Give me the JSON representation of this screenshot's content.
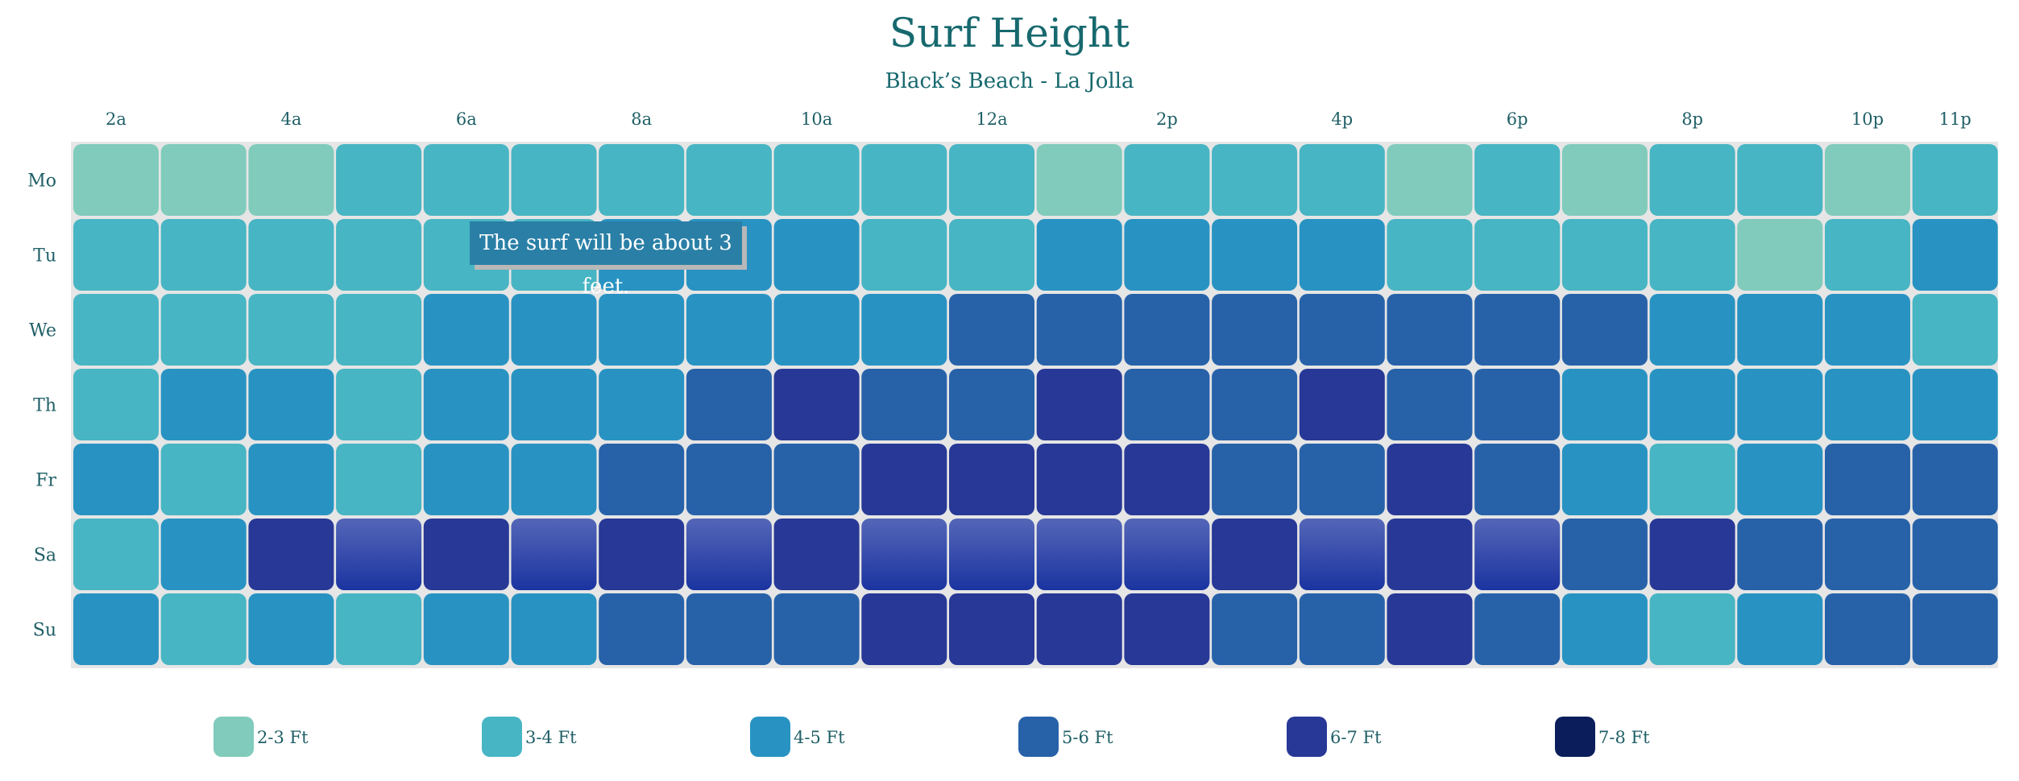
{
  "title": "Surf Height",
  "subtitle": "Black’s Beach - La Jolla",
  "tooltip": "The surf will be about 3 feet.",
  "chart_data": {
    "type": "heatmap",
    "title": "Surf Height",
    "subtitle": "Black’s Beach - La Jolla",
    "rows": [
      "Mo",
      "Tu",
      "We",
      "Th",
      "Fr",
      "Sa",
      "Su"
    ],
    "column_count": 22,
    "column_tick_labels": [
      {
        "col": 0,
        "label": "2a"
      },
      {
        "col": 2,
        "label": "4a"
      },
      {
        "col": 4,
        "label": "6a"
      },
      {
        "col": 6,
        "label": "8a"
      },
      {
        "col": 8,
        "label": "10a"
      },
      {
        "col": 10,
        "label": "12a"
      },
      {
        "col": 12,
        "label": "2p"
      },
      {
        "col": 14,
        "label": "4p"
      },
      {
        "col": 16,
        "label": "6p"
      },
      {
        "col": 18,
        "label": "8p"
      },
      {
        "col": 20,
        "label": "10p"
      },
      {
        "col": 21,
        "label": "11p"
      }
    ],
    "legend": [
      "2-3 Ft",
      "3-4 Ft",
      "4-5 Ft",
      "5-6 Ft",
      "6-7 Ft",
      "7-8 Ft"
    ],
    "colors": [
      "#80cbbc",
      "#47b5c3",
      "#2893c2",
      "#2762a9",
      "#283896",
      "#0b1e5b"
    ],
    "highlight_gradient": [
      "#5566b8",
      "#1a34a0"
    ],
    "values": [
      [
        0,
        0,
        0,
        1,
        1,
        1,
        1,
        1,
        1,
        1,
        1,
        0,
        1,
        1,
        1,
        0,
        1,
        0,
        1,
        1,
        0,
        1
      ],
      [
        1,
        1,
        1,
        1,
        1,
        1,
        2,
        2,
        2,
        1,
        1,
        2,
        2,
        2,
        2,
        1,
        1,
        1,
        1,
        0,
        1,
        2
      ],
      [
        1,
        1,
        1,
        1,
        2,
        2,
        2,
        2,
        2,
        2,
        3,
        3,
        3,
        3,
        3,
        3,
        3,
        3,
        2,
        2,
        2,
        1
      ],
      [
        1,
        2,
        2,
        1,
        2,
        2,
        2,
        3,
        4,
        3,
        3,
        4,
        3,
        3,
        4,
        3,
        3,
        2,
        2,
        2,
        2,
        2
      ],
      [
        2,
        1,
        2,
        1,
        2,
        2,
        3,
        3,
        3,
        4,
        4,
        4,
        4,
        3,
        3,
        4,
        3,
        2,
        1,
        2,
        3,
        3
      ],
      [
        1,
        2,
        4,
        4,
        4,
        4,
        4,
        4,
        4,
        4,
        4,
        4,
        4,
        4,
        4,
        4,
        4,
        3,
        4,
        3,
        3,
        3
      ],
      [
        2,
        1,
        2,
        1,
        2,
        2,
        3,
        3,
        3,
        4,
        4,
        4,
        4,
        3,
        3,
        4,
        3,
        2,
        1,
        2,
        3,
        3
      ]
    ],
    "highlighted_cells": [
      [
        5,
        3
      ],
      [
        5,
        5
      ],
      [
        5,
        7
      ],
      [
        5,
        9
      ],
      [
        5,
        10
      ],
      [
        5,
        11
      ],
      [
        5,
        12
      ],
      [
        5,
        14
      ],
      [
        5,
        16
      ]
    ]
  }
}
